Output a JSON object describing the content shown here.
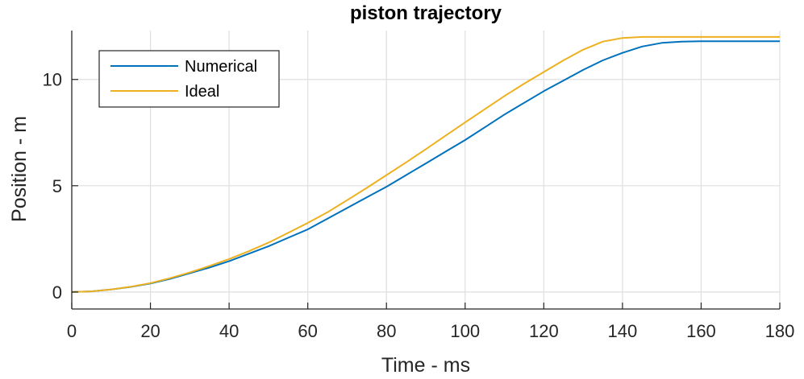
{
  "chart_data": {
    "type": "line",
    "title": "piston trajectory",
    "xlabel": "Time - ms",
    "ylabel": "Position - m",
    "xlim": [
      0,
      180
    ],
    "ylim": [
      -0.8,
      12.3
    ],
    "xticks": [
      0,
      20,
      40,
      60,
      80,
      100,
      120,
      140,
      160,
      180
    ],
    "yticks": [
      0,
      5,
      10
    ],
    "grid": true,
    "legend_position": "top-left",
    "x": [
      0,
      5,
      10,
      15,
      20,
      25,
      30,
      35,
      40,
      45,
      50,
      55,
      60,
      65,
      70,
      75,
      80,
      85,
      90,
      95,
      100,
      105,
      110,
      115,
      120,
      125,
      130,
      135,
      140,
      145,
      150,
      155,
      160,
      165,
      170,
      175,
      180
    ],
    "series": [
      {
        "name": "Numerical",
        "color": "#0072BD",
        "values": [
          0,
          0.03,
          0.12,
          0.24,
          0.4,
          0.62,
          0.88,
          1.15,
          1.45,
          1.8,
          2.15,
          2.55,
          2.95,
          3.45,
          3.95,
          4.45,
          4.95,
          5.5,
          6.05,
          6.6,
          7.15,
          7.75,
          8.35,
          8.9,
          9.45,
          9.95,
          10.45,
          10.9,
          11.25,
          11.55,
          11.72,
          11.78,
          11.8,
          11.8,
          11.8,
          11.8,
          11.8
        ]
      },
      {
        "name": "Ideal",
        "color": "#EDB120",
        "values": [
          0,
          0.03,
          0.12,
          0.25,
          0.42,
          0.65,
          0.92,
          1.22,
          1.55,
          1.92,
          2.32,
          2.78,
          3.25,
          3.75,
          4.32,
          4.9,
          5.5,
          6.1,
          6.72,
          7.35,
          7.98,
          8.6,
          9.22,
          9.8,
          10.35,
          10.9,
          11.4,
          11.78,
          11.95,
          12.0,
          12.0,
          12.0,
          12.0,
          12.0,
          12.0,
          12.0,
          12.0
        ]
      }
    ]
  }
}
